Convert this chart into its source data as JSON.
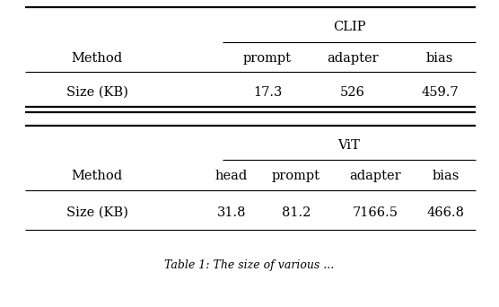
{
  "clip_header_group": "CLIP",
  "clip_col1_header": "Method",
  "clip_subheaders": [
    "prompt",
    "adapter",
    "bias"
  ],
  "clip_row_label": "Size (KB)",
  "clip_row_values": [
    "17.3",
    "526",
    "459.7"
  ],
  "vit_header_group": "ViT",
  "vit_col1_header": "Method",
  "vit_subheaders": [
    "head",
    "prompt",
    "adapter",
    "bias"
  ],
  "vit_row_label": "Size (KB)",
  "vit_row_values": [
    "31.8",
    "81.2",
    "7166.5",
    "466.8"
  ],
  "caption": "Table 1: The size of various ...",
  "font_size": 10.5,
  "background_color": "#ffffff",
  "text_color": "#000000",
  "line_color": "#000000",
  "fig_width": 5.56,
  "fig_height": 3.42,
  "dpi": 100
}
